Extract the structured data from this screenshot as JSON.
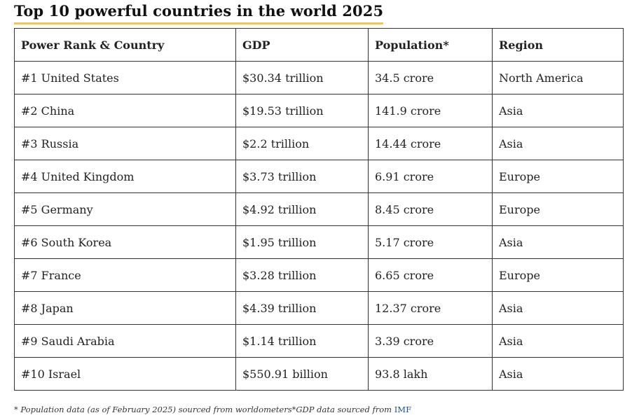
{
  "title": "Top 10 powerful countries in the world 2025",
  "table": {
    "headers": [
      "Power Rank & Country",
      "GDP",
      "Population*",
      "Region"
    ],
    "rows": [
      [
        "#1 United States",
        "$30.34 trillion",
        "34.5 crore",
        "North America"
      ],
      [
        "#2 China",
        "$19.53 trillion",
        "141.9 crore",
        "Asia"
      ],
      [
        "#3 Russia",
        "$2.2 trillion",
        "14.44 crore",
        "Asia"
      ],
      [
        "#4 United Kingdom",
        "$3.73 trillion",
        "6.91 crore",
        "Europe"
      ],
      [
        "#5 Germany",
        "$4.92 trillion",
        "8.45 crore",
        "Europe"
      ],
      [
        "#6 South Korea",
        "$1.95 trillion",
        "5.17 crore",
        "Asia"
      ],
      [
        "#7 France",
        "$3.28 trillion",
        "6.65 crore",
        "Europe"
      ],
      [
        "#8 Japan",
        "$4.39 trillion",
        "12.37 crore",
        "Asia"
      ],
      [
        "#9 Saudi Arabia",
        "$1.14 trillion",
        "3.39 crore",
        "Asia"
      ],
      [
        "#10 Israel",
        "$550.91 billion",
        "93.8 lakh",
        "Asia"
      ]
    ]
  },
  "footnote": {
    "text": "* Population data (as of February 2025) sourced from worldometers*GDP data sourced from ",
    "link_label": "IMF"
  },
  "colors": {
    "title_underline": "#f2c94c",
    "link": "#1a4fa0",
    "border": "#333333"
  }
}
